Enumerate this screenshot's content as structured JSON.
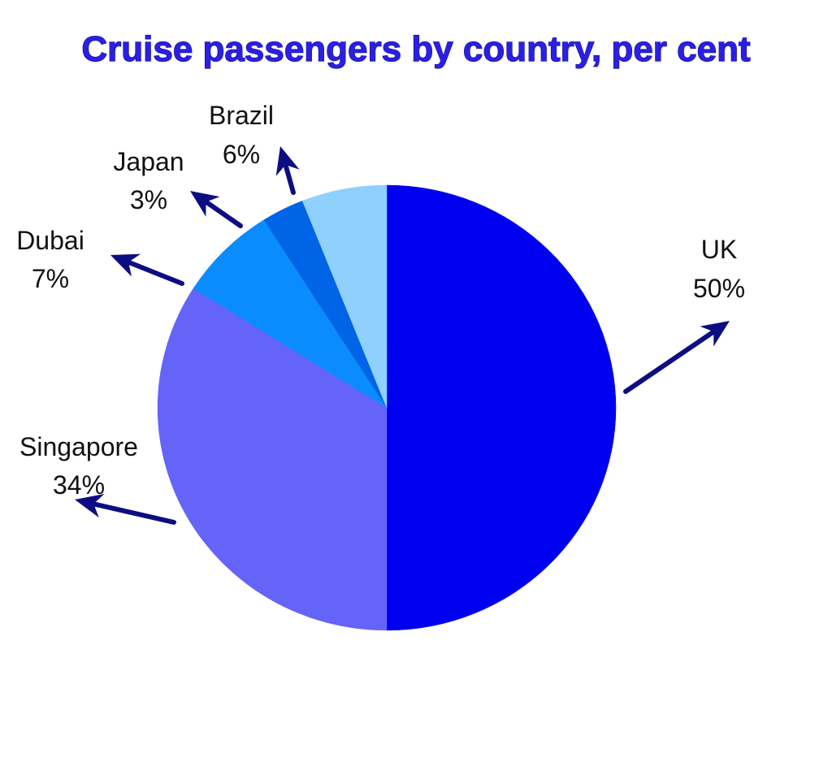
{
  "chart_data": {
    "type": "pie",
    "title": "Cruise passengers by country, per cent",
    "slices": [
      {
        "label": "UK",
        "value": 50,
        "value_label": "50%",
        "color": "#0000f0"
      },
      {
        "label": "Singapore",
        "value": 34,
        "value_label": "34%",
        "color": "#6464f8"
      },
      {
        "label": "Dubai",
        "value": 7,
        "value_label": "7%",
        "color": "#0a8cff"
      },
      {
        "label": "Japan",
        "value": 3,
        "value_label": "3%",
        "color": "#0064e6"
      },
      {
        "label": "Brazil",
        "value": 6,
        "value_label": "6%",
        "color": "#90d0ff"
      }
    ],
    "start_angle": "12 o'clock",
    "direction": "clockwise",
    "label_style": "outside with arrows",
    "arrow_color": "#0d0d82",
    "title_color": "#2b1fe6"
  }
}
